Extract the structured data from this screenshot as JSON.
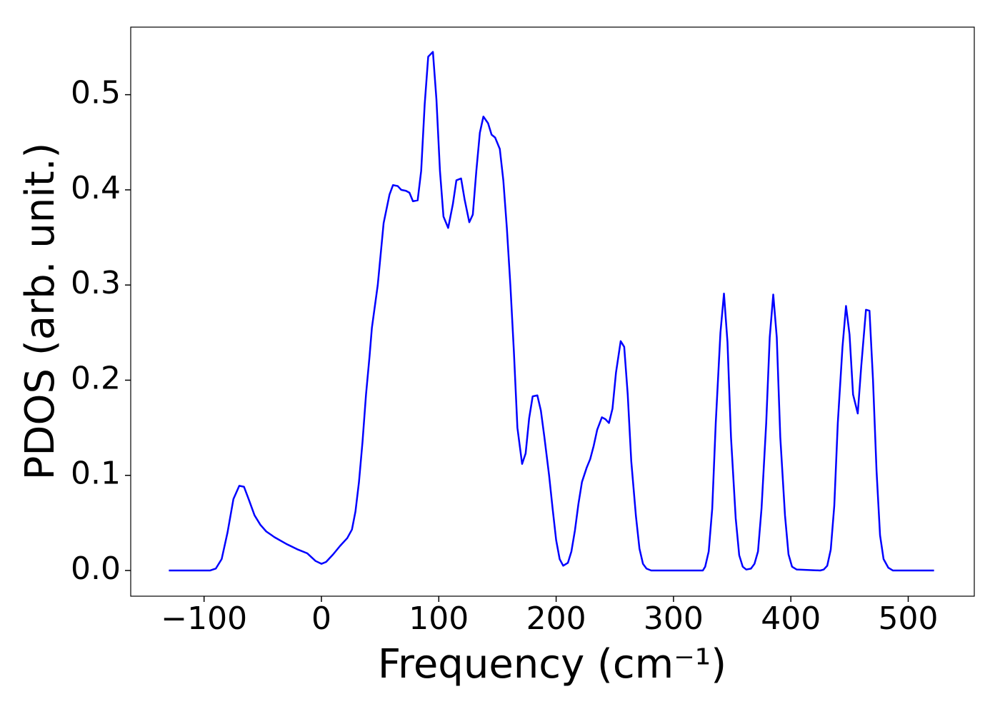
{
  "chart_data": {
    "type": "line",
    "xlabel": "Frequency (cm⁻¹)",
    "ylabel": "PDOS (arb. unit.)",
    "xlim": [
      -162.5,
      556.3
    ],
    "ylim": [
      -0.027,
      0.571
    ],
    "xticks": [
      {
        "value": -100,
        "label": "−100"
      },
      0,
      100,
      200,
      300,
      400,
      500
    ],
    "yticks": [
      {
        "value": 0,
        "label": "0.0"
      },
      0.1,
      0.2,
      0.3,
      0.4,
      0.5
    ],
    "grid": false,
    "series": [
      {
        "color": "#0000ff",
        "x": [
          -130,
          -95,
          -90,
          -85,
          -80,
          -75,
          -70,
          -66,
          -62,
          -57,
          -52,
          -47,
          -40,
          -30,
          -20,
          -12,
          -5,
          0,
          4,
          10,
          16,
          22,
          26,
          29,
          32,
          35,
          38,
          41,
          43,
          48,
          53,
          58,
          61,
          65,
          68,
          72,
          75,
          78,
          82,
          85,
          88,
          91,
          95,
          98,
          101,
          104,
          108,
          112,
          115,
          119,
          122,
          126,
          129,
          132,
          135,
          138,
          142,
          145,
          148,
          152,
          155,
          158,
          161,
          164,
          167,
          171,
          174,
          177,
          180,
          184,
          187,
          190,
          194,
          197,
          200,
          203,
          206,
          210,
          213,
          216,
          219,
          222,
          226,
          229,
          232,
          235,
          239,
          242,
          245,
          248,
          251,
          255,
          258,
          261,
          264,
          268,
          271,
          274,
          277,
          281,
          300,
          325,
          327,
          330,
          333,
          336,
          340,
          343,
          346,
          349,
          353,
          356,
          359,
          362,
          366,
          369,
          372,
          375,
          379,
          382,
          385,
          388,
          391,
          395,
          398,
          401,
          405,
          425,
          428,
          431,
          434,
          437,
          440,
          444,
          447,
          450,
          453,
          457,
          460,
          464,
          467,
          470,
          473,
          476,
          479,
          483,
          487,
          522
        ],
        "values": [
          0,
          0,
          0.002,
          0.012,
          0.04,
          0.075,
          0.089,
          0.088,
          0.075,
          0.058,
          0.048,
          0.041,
          0.035,
          0.028,
          0.022,
          0.018,
          0.01,
          0.007,
          0.009,
          0.017,
          0.026,
          0.034,
          0.043,
          0.062,
          0.093,
          0.135,
          0.185,
          0.225,
          0.255,
          0.3,
          0.365,
          0.395,
          0.405,
          0.404,
          0.4,
          0.399,
          0.397,
          0.388,
          0.389,
          0.42,
          0.49,
          0.54,
          0.545,
          0.495,
          0.42,
          0.372,
          0.36,
          0.385,
          0.41,
          0.412,
          0.39,
          0.366,
          0.374,
          0.42,
          0.46,
          0.477,
          0.47,
          0.458,
          0.455,
          0.443,
          0.41,
          0.36,
          0.3,
          0.23,
          0.15,
          0.112,
          0.123,
          0.16,
          0.183,
          0.184,
          0.168,
          0.14,
          0.1,
          0.065,
          0.032,
          0.012,
          0.005,
          0.008,
          0.02,
          0.042,
          0.07,
          0.093,
          0.108,
          0.117,
          0.131,
          0.148,
          0.161,
          0.159,
          0.155,
          0.17,
          0.208,
          0.241,
          0.235,
          0.185,
          0.115,
          0.057,
          0.023,
          0.007,
          0.002,
          0,
          0,
          0,
          0.004,
          0.02,
          0.065,
          0.155,
          0.25,
          0.291,
          0.24,
          0.14,
          0.055,
          0.016,
          0.004,
          0.001,
          0.002,
          0.007,
          0.02,
          0.065,
          0.155,
          0.245,
          0.29,
          0.245,
          0.14,
          0.058,
          0.017,
          0.004,
          0.001,
          0,
          0.001,
          0.005,
          0.022,
          0.068,
          0.155,
          0.235,
          0.278,
          0.248,
          0.185,
          0.165,
          0.215,
          0.274,
          0.273,
          0.2,
          0.105,
          0.037,
          0.012,
          0.003,
          0,
          0
        ]
      }
    ]
  }
}
